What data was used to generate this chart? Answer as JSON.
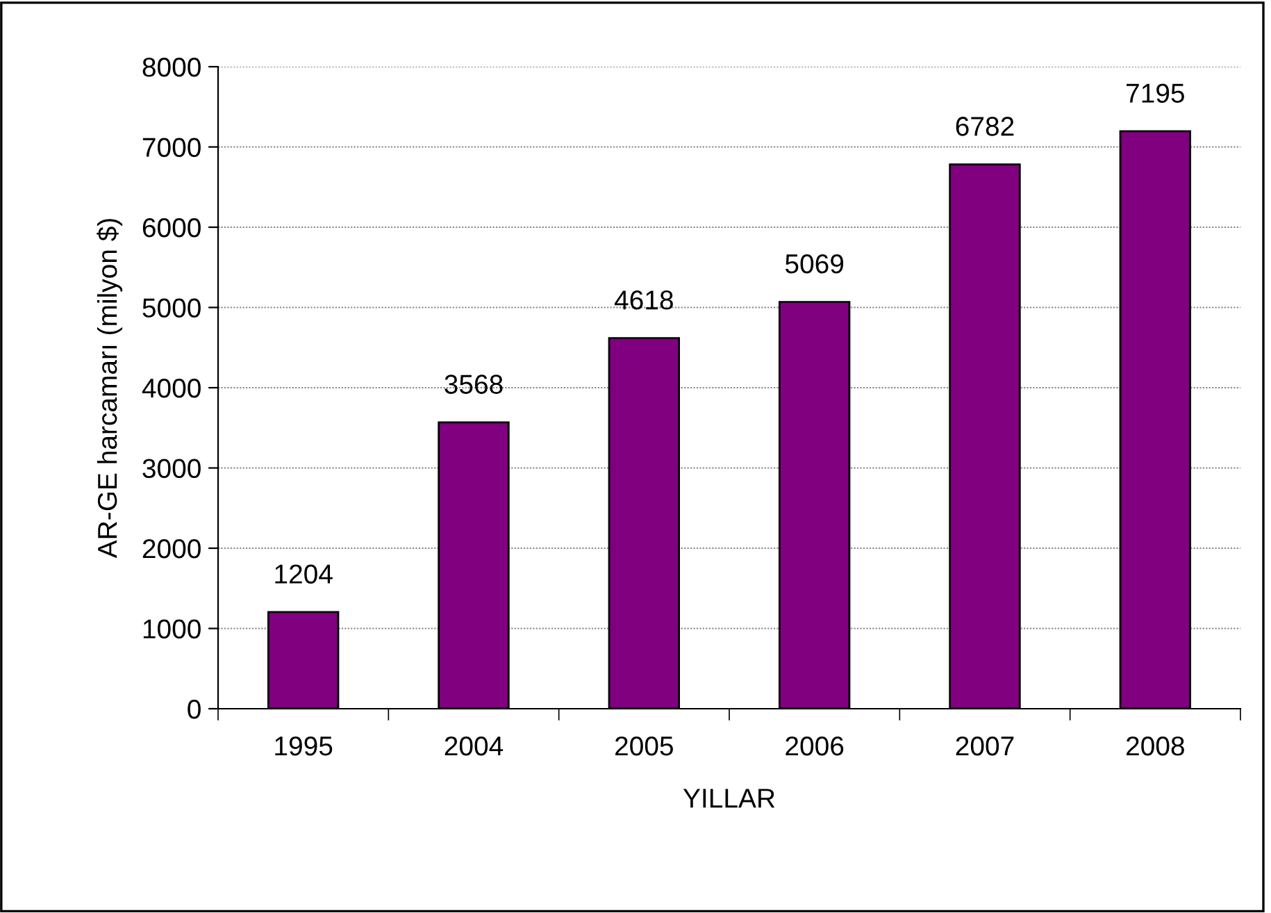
{
  "chart_data": {
    "type": "bar",
    "xlabel": "YILLAR",
    "ylabel": "AR-GE harcamarı (milyon $)",
    "categories": [
      "1995",
      "2004",
      "2005",
      "2006",
      "2007",
      "2008"
    ],
    "values": [
      1204,
      3568,
      4618,
      5069,
      6782,
      7195
    ],
    "color": "#800080",
    "ylim": [
      0,
      8000
    ],
    "yticks": [
      0,
      1000,
      2000,
      3000,
      4000,
      5000,
      6000,
      7000,
      8000
    ],
    "grid": "y",
    "data_labels": true,
    "legend": false
  }
}
